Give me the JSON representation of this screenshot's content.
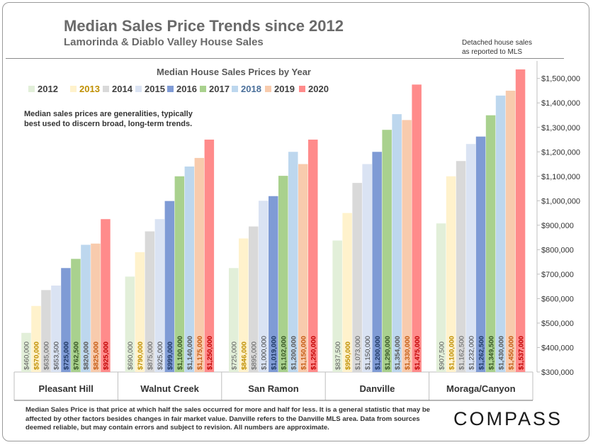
{
  "header": {
    "title": "Median Sales Price Trends since 2012",
    "subtitle": "Lamorinda & Diablo Valley House Sales",
    "detached_line1": "Detached house sales",
    "detached_line2": "as reported to MLS"
  },
  "note": "Median sales prices are generalities, typically best used to discern broad, long-term trends.",
  "footer": "Median Sales Price is that price at which half the sales occurred for more and half for less. It is a general statistic that may be affected by other factors besides changes in fair market value. Danville refers to the Danville MLS area. Data from sources deemed reliable, but may contain errors and subject to revision.  All numbers are approximate.",
  "logo": "COMPASS",
  "chart_data": {
    "type": "bar",
    "title": "Median House Sales Prices by Year",
    "categories": [
      "Pleasant Hill",
      "Walnut Creek",
      "San Ramon",
      "Danville",
      "Moraga/Canyon"
    ],
    "series": [
      {
        "name": "2012",
        "color": "#e2efd9",
        "label_color": "#595959",
        "values": [
          460000,
          690000,
          725000,
          837500,
          907500
        ]
      },
      {
        "name": "2013",
        "color": "#fff2cc",
        "label_color": "#bf8f00",
        "values": [
          570000,
          790000,
          846000,
          950000,
          1100000
        ]
      },
      {
        "name": "2014",
        "color": "#d9d9d9",
        "label_color": "#595959",
        "values": [
          635000,
          875000,
          895000,
          1073000,
          1162500
        ]
      },
      {
        "name": "2015",
        "color": "#dae3f3",
        "label_color": "#404040",
        "values": [
          653500,
          925000,
          1000000,
          1150000,
          1232000
        ]
      },
      {
        "name": "2016",
        "color": "#7f9bd5",
        "label_color": "#1f3864",
        "values": [
          725000,
          999000,
          1019000,
          1200000,
          1262500
        ]
      },
      {
        "name": "2017",
        "color": "#a9d18e",
        "label_color": "#375623",
        "values": [
          762500,
          1100000,
          1102000,
          1290000,
          1349500
        ]
      },
      {
        "name": "2018",
        "color": "#bdd7ee",
        "label_color": "#595959",
        "values": [
          820000,
          1140000,
          1200000,
          1354000,
          1430000
        ]
      },
      {
        "name": "2019",
        "color": "#f8cbad",
        "label_color": "#c55a11",
        "values": [
          825000,
          1175000,
          1150000,
          1330000,
          1450000
        ]
      },
      {
        "name": "2020",
        "color": "#ff8b8b",
        "label_color": "#c00000",
        "values": [
          925000,
          1250000,
          1250000,
          1475000,
          1537000
        ]
      }
    ],
    "value_labels": [
      [
        "$460,000",
        "$690,000",
        "$725,000",
        "$837,500",
        "$907,500"
      ],
      [
        "$570,000",
        "$790,000",
        "$846,000",
        "$950,000",
        "$1,100,000"
      ],
      [
        "$635,000",
        "$875,000",
        "$895,000",
        "$1,073,000",
        "$1,162,500"
      ],
      [
        "$653,500",
        "$925,000",
        "$1,000,000",
        "$1,150,000",
        "$1,232,000"
      ],
      [
        "$725,000",
        "$999,000",
        "$1,019,000",
        "$1,200,000",
        "$1,262,500"
      ],
      [
        "$762,500",
        "$1,100,000",
        "$1,102,000",
        "$1,290,000",
        "$1,349,500"
      ],
      [
        "$820,000",
        "$1,140,000",
        "$1,200,000",
        "$1,354,000",
        "$1,430,000"
      ],
      [
        "$825,000",
        "$1,175,000",
        "$1,150,000",
        "$1,330,000",
        "$1,450,000"
      ],
      [
        "$925,000",
        "$1,250,000",
        "$1,250,000",
        "$1,475,000",
        "$1,537,000"
      ]
    ],
    "y_ticks": [
      "$300,000",
      "$400,000",
      "$500,000",
      "$600,000",
      "$700,000",
      "$800,000",
      "$900,000",
      "$1,000,000",
      "$1,100,000",
      "$1,200,000",
      "$1,300,000",
      "$1,400,000",
      "$1,500,000"
    ],
    "ylim": [
      300000,
      1560000
    ],
    "y_axis_side": "right",
    "legend_position": "top",
    "grid": false
  }
}
